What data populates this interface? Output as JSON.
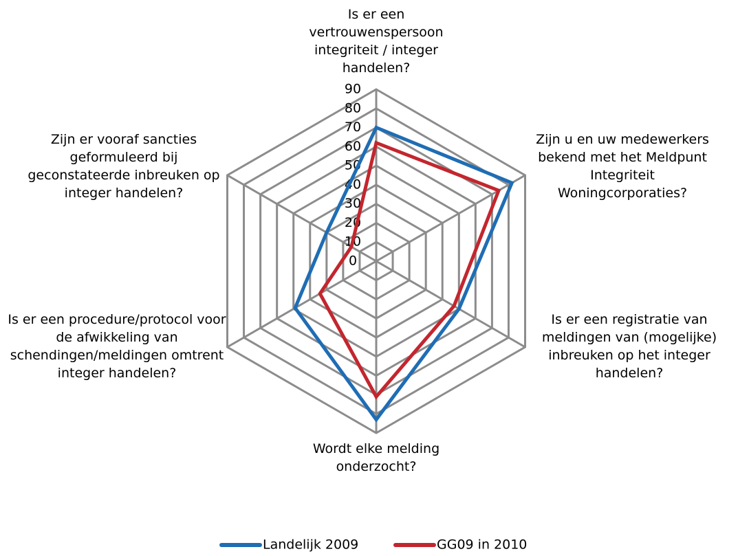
{
  "chart_data": {
    "type": "radar",
    "categories": [
      "Is er een vertrouwenspersoon integriteit / integer handelen?",
      "Zijn u en uw medewerkers bekend met het Meldpunt Integriteit Woningcorporaties?",
      "Is er een registratie van meldingen van (mogelijke) inbreuken op het integer handelen?",
      "Wordt elke melding onderzocht?",
      "Is er een procedure/protocol voor de afwikkeling van schendingen/meldingen omtrent integer handelen?",
      "Zijn er vooraf sancties geformuleerd bij geconstateerde inbreuken op integer handelen?"
    ],
    "series": [
      {
        "name": "Landelijk 2009",
        "color": "#1f6db4",
        "values": [
          70,
          82,
          50,
          83,
          49,
          30
        ]
      },
      {
        "name": "GG09 in 2010",
        "color": "#c3262e",
        "values": [
          62,
          74,
          47,
          71,
          34,
          15
        ]
      }
    ],
    "ylim": [
      0,
      90
    ],
    "yticks": [
      0,
      10,
      20,
      30,
      40,
      50,
      60,
      70,
      80,
      90
    ],
    "grid": true,
    "legend": "bottom"
  }
}
